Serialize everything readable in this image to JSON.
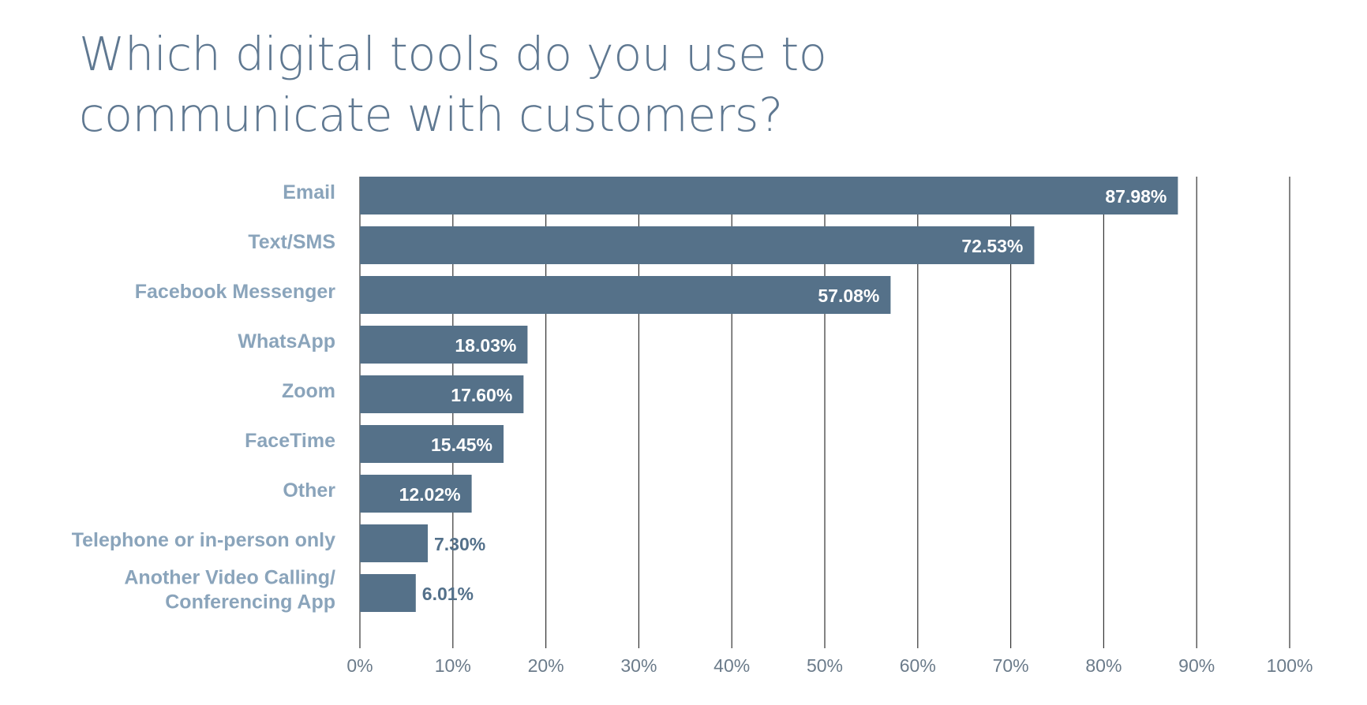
{
  "chart_data": {
    "type": "bar",
    "orientation": "horizontal",
    "title": "Which digital tools do you use to communicate with customers?",
    "categories": [
      "Email",
      "Text/SMS",
      "Facebook Messenger",
      "WhatsApp",
      "Zoom",
      "FaceTime",
      "Other",
      "Telephone or in-person only",
      "Another Video Calling/ Conferencing App"
    ],
    "category_lines": [
      [
        "Email"
      ],
      [
        "Text/SMS"
      ],
      [
        "Facebook Messenger"
      ],
      [
        "WhatsApp"
      ],
      [
        "Zoom"
      ],
      [
        "FaceTime"
      ],
      [
        "Other"
      ],
      [
        "Telephone or in-person only"
      ],
      [
        "Another Video Calling/",
        "Conferencing App"
      ]
    ],
    "values": [
      87.98,
      72.53,
      57.08,
      18.03,
      17.6,
      15.45,
      12.02,
      7.3,
      6.01
    ],
    "value_labels": [
      "87.98%",
      "72.53%",
      "57.08%",
      "18.03%",
      "17.60%",
      "15.45%",
      "12.02%",
      "7.30%",
      "6.01%"
    ],
    "xlim": [
      0,
      100
    ],
    "x_ticks": [
      0,
      10,
      20,
      30,
      40,
      50,
      60,
      70,
      80,
      90,
      100
    ],
    "x_tick_labels": [
      "0%",
      "10%",
      "20%",
      "30%",
      "40%",
      "50%",
      "60%",
      "70%",
      "80%",
      "90%",
      "100%"
    ],
    "xlabel": "",
    "ylabel": "",
    "grid": "vertical",
    "legend": "none",
    "colors": {
      "bar": "#557189",
      "title": "#5f7891",
      "category_label": "#8aa4bb",
      "grid": "#333333"
    }
  }
}
